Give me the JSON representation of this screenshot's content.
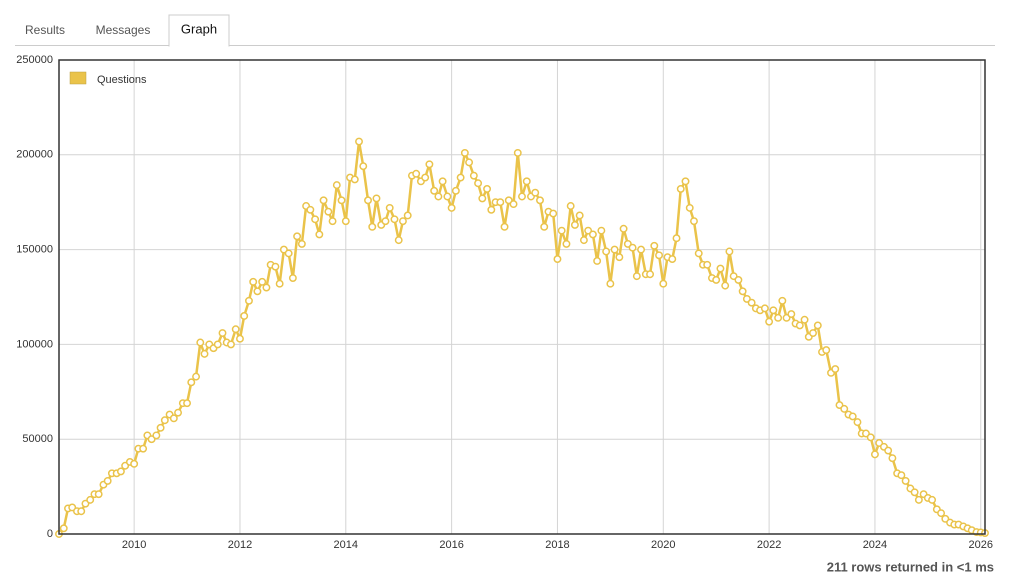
{
  "tabs": [
    "Results",
    "Messages",
    "Graph"
  ],
  "status": "211 rows returned in <1 ms",
  "chart_data": {
    "type": "line",
    "x": [
      2008.58,
      2008.67,
      2008.75,
      2008.83,
      2008.92,
      2009,
      2009.08,
      2009.17,
      2009.25,
      2009.33,
      2009.42,
      2009.5,
      2009.58,
      2009.67,
      2009.75,
      2009.83,
      2009.92,
      2010,
      2010.08,
      2010.17,
      2010.25,
      2010.33,
      2010.42,
      2010.5,
      2010.58,
      2010.67,
      2010.75,
      2010.83,
      2010.92,
      2011,
      2011.08,
      2011.17,
      2011.25,
      2011.33,
      2011.42,
      2011.5,
      2011.58,
      2011.67,
      2011.75,
      2011.83,
      2011.92,
      2012,
      2012.08,
      2012.17,
      2012.25,
      2012.33,
      2012.42,
      2012.5,
      2012.58,
      2012.67,
      2012.75,
      2012.83,
      2012.92,
      2013,
      2013.08,
      2013.17,
      2013.25,
      2013.33,
      2013.42,
      2013.5,
      2013.58,
      2013.67,
      2013.75,
      2013.83,
      2013.92,
      2014,
      2014.08,
      2014.17,
      2014.25,
      2014.33,
      2014.42,
      2014.5,
      2014.58,
      2014.67,
      2014.75,
      2014.83,
      2014.92,
      2015,
      2015.08,
      2015.17,
      2015.25,
      2015.33,
      2015.42,
      2015.5,
      2015.58,
      2015.67,
      2015.75,
      2015.83,
      2015.92,
      2016,
      2016.08,
      2016.17,
      2016.25,
      2016.33,
      2016.42,
      2016.5,
      2016.58,
      2016.67,
      2016.75,
      2016.83,
      2016.92,
      2017,
      2017.08,
      2017.17,
      2017.25,
      2017.33,
      2017.42,
      2017.5,
      2017.58,
      2017.67,
      2017.75,
      2017.83,
      2017.92,
      2018,
      2018.08,
      2018.17,
      2018.25,
      2018.33,
      2018.42,
      2018.5,
      2018.58,
      2018.67,
      2018.75,
      2018.83,
      2018.92,
      2019,
      2019.08,
      2019.17,
      2019.25,
      2019.33,
      2019.42,
      2019.5,
      2019.58,
      2019.67,
      2019.75,
      2019.83,
      2019.92,
      2020,
      2020.08,
      2020.17,
      2020.25,
      2020.33,
      2020.42,
      2020.5,
      2020.58,
      2020.67,
      2020.75,
      2020.83,
      2020.92,
      2021,
      2021.08,
      2021.17,
      2021.25,
      2021.33,
      2021.42,
      2021.5,
      2021.58,
      2021.67,
      2021.75,
      2021.83,
      2021.92,
      2022,
      2022.08,
      2022.17,
      2022.25,
      2022.33,
      2022.42,
      2022.5,
      2022.58,
      2022.67,
      2022.75,
      2022.83,
      2022.92,
      2023,
      2023.08,
      2023.17,
      2023.25,
      2023.33,
      2023.42,
      2023.5,
      2023.58,
      2023.67,
      2023.75,
      2023.83,
      2023.92,
      2024,
      2024.08,
      2024.17,
      2024.25,
      2024.33,
      2024.42,
      2024.5,
      2024.58,
      2024.67,
      2024.75,
      2024.83,
      2024.92,
      2025,
      2025.08,
      2025.17,
      2025.25,
      2025.33,
      2025.42,
      2025.5,
      2025.58,
      2025.67,
      2025.75,
      2025.83,
      2025.92,
      2026,
      2026.08
    ],
    "series": [
      {
        "name": "Questions",
        "color": "#eac34a",
        "values": [
          0,
          3000,
          13500,
          14000,
          12000,
          12000,
          16000,
          18000,
          21000,
          21000,
          26000,
          28000,
          32000,
          32000,
          33000,
          36000,
          38000,
          37000,
          45000,
          45000,
          52000,
          50000,
          52000,
          56000,
          60000,
          63000,
          61000,
          64000,
          69000,
          69000,
          80000,
          83000,
          101000,
          95000,
          100000,
          98000,
          100000,
          106000,
          101000,
          100000,
          108000,
          103000,
          115000,
          123000,
          133000,
          128000,
          133000,
          130000,
          142000,
          141000,
          132000,
          150000,
          148000,
          135000,
          157000,
          153000,
          173000,
          171000,
          166000,
          158000,
          176000,
          170000,
          165000,
          184000,
          176000,
          165000,
          188000,
          187000,
          207000,
          194000,
          176000,
          162000,
          177000,
          163000,
          165000,
          172000,
          166000,
          155000,
          165000,
          168000,
          189000,
          190000,
          186000,
          188000,
          195000,
          181000,
          178000,
          186000,
          178000,
          172000,
          181000,
          188000,
          201000,
          196000,
          189000,
          185000,
          177000,
          182000,
          171000,
          175000,
          175000,
          162000,
          176000,
          174000,
          201000,
          178000,
          186000,
          178000,
          180000,
          176000,
          162000,
          170000,
          169000,
          145000,
          160000,
          153000,
          173000,
          163000,
          168000,
          155000,
          160000,
          158000,
          144000,
          160000,
          149000,
          132000,
          150000,
          146000,
          161000,
          153000,
          151000,
          136000,
          150000,
          137000,
          137000,
          152000,
          147000,
          132000,
          146000,
          145000,
          156000,
          182000,
          186000,
          172000,
          165000,
          148000,
          142000,
          142000,
          135000,
          134000,
          140000,
          131000,
          149000,
          136000,
          134000,
          128000,
          124000,
          122000,
          119000,
          118000,
          119000,
          112000,
          118000,
          114000,
          123000,
          114000,
          116000,
          111000,
          110000,
          113000,
          104000,
          106000,
          110000,
          96000,
          97000,
          85000,
          87000,
          68000,
          66000,
          63000,
          62000,
          59000,
          53000,
          53000,
          51000,
          42000,
          48000,
          46000,
          44000,
          40000,
          32000,
          31000,
          28000,
          24000,
          22000,
          18000,
          21000,
          19000,
          18000,
          13000,
          11000,
          8000,
          6000,
          5000,
          5000,
          4000,
          3000,
          2000,
          1000,
          800,
          500
        ]
      }
    ],
    "xlim": [
      2008.58,
      2026.08
    ],
    "xticks": [
      2010,
      2012,
      2014,
      2016,
      2018,
      2020,
      2022,
      2024,
      2026
    ],
    "ylim": [
      0,
      250000
    ],
    "yticks": [
      0,
      50000,
      100000,
      150000,
      200000,
      250000
    ],
    "grid": true,
    "legend": "top-left"
  }
}
